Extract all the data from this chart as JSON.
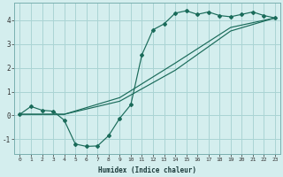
{
  "xlabel": "Humidex (Indice chaleur)",
  "bg_color": "#d4eeee",
  "grid_color": "#aad4d4",
  "line_color": "#1a6b5a",
  "xlim": [
    -0.5,
    23.5
  ],
  "ylim": [
    -1.6,
    4.75
  ],
  "yticks": [
    -1,
    0,
    1,
    2,
    3,
    4
  ],
  "xticks": [
    0,
    1,
    2,
    3,
    4,
    5,
    6,
    7,
    8,
    9,
    10,
    11,
    12,
    13,
    14,
    15,
    16,
    17,
    18,
    19,
    20,
    21,
    22,
    23
  ],
  "line1_x": [
    0,
    1,
    2,
    3,
    4,
    5,
    6,
    7,
    8,
    9,
    10,
    11,
    12,
    13,
    14,
    15,
    16,
    17,
    18,
    19,
    20,
    21,
    22,
    23
  ],
  "line1_y": [
    0.05,
    0.38,
    0.22,
    0.18,
    -0.2,
    -1.2,
    -1.3,
    -1.28,
    -0.85,
    -0.12,
    0.45,
    2.55,
    3.6,
    3.85,
    4.3,
    4.4,
    4.25,
    4.35,
    4.2,
    4.15,
    4.25,
    4.35,
    4.2,
    4.1
  ],
  "line2_x": [
    0,
    4,
    9,
    14,
    19,
    23
  ],
  "line2_y": [
    0.05,
    0.05,
    0.75,
    2.2,
    3.7,
    4.1
  ],
  "line3_x": [
    0,
    4,
    9,
    14,
    19,
    23
  ],
  "line3_y": [
    0.05,
    0.05,
    0.6,
    1.9,
    3.55,
    4.1
  ]
}
